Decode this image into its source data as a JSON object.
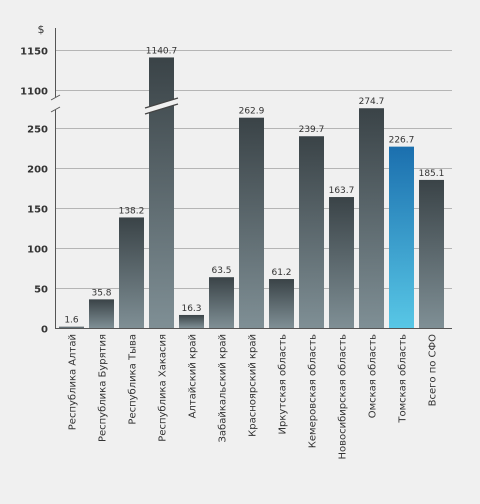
{
  "chart_data": {
    "type": "bar",
    "unit_label": "$",
    "categories": [
      "Республика Алтай",
      "Республика Бурятия",
      "Республика Тыва",
      "Республика Хакасия",
      "Алтайский край",
      "Забайкальский край",
      "Красноярский край",
      "Иркутская область",
      "Кемеровская область",
      "Новосибирская область",
      "Омская область",
      "Томская область",
      "Всего по СФО"
    ],
    "values": [
      1.6,
      35.8,
      138.2,
      1140.7,
      16.3,
      63.5,
      262.9,
      61.2,
      239.7,
      163.7,
      274.7,
      226.7,
      185.1
    ],
    "value_labels": [
      "1.6",
      "35.8",
      "138.2",
      "1140.7",
      "16.3",
      "63.5",
      "262.9",
      "61.2",
      "239.7",
      "163.7",
      "274.7",
      "226.7",
      "185.1"
    ],
    "highlight_index": 11,
    "y_ticks_lower": [
      0,
      50,
      100,
      150,
      200,
      250
    ],
    "y_ticks_upper": [
      1100,
      1150
    ],
    "ylim_lower": [
      0,
      275
    ],
    "ylim_upper": [
      1087.5,
      1175
    ],
    "axis_break": true,
    "grid": true,
    "colors": {
      "bar_top": "#3a4347",
      "bar_bottom": "#7f8f95",
      "highlight_top": "#1b6fae",
      "highlight_bottom": "#58c7e6",
      "grid": "#b5b5b5",
      "axis": "#555555",
      "text": "#333333",
      "background": "#f0f0f0"
    }
  }
}
